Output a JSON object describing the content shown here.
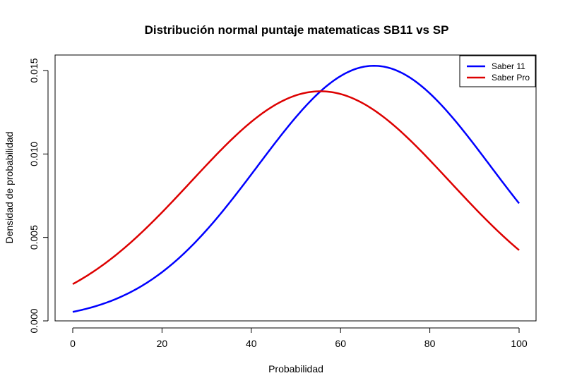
{
  "chart_data": {
    "type": "line",
    "title": "Distribución normal puntaje matematicas SB11 vs SP",
    "xlabel": "Probabilidad",
    "ylabel": "Densidad de probabilidad",
    "xlim": [
      0,
      100
    ],
    "ylim": [
      0,
      0.015
    ],
    "x_ticks": [
      0,
      20,
      40,
      60,
      80,
      100
    ],
    "x_tick_labels": [
      "0",
      "20",
      "40",
      "60",
      "80",
      "100"
    ],
    "y_ticks": [
      0,
      0.005,
      0.01,
      0.015
    ],
    "y_tick_labels": [
      "0.000",
      "0.005",
      "0.010",
      "0.015"
    ],
    "grid": false,
    "legend_position": "top-right",
    "series": [
      {
        "name": "Saber 11",
        "color": "#0000ff",
        "mean": 67.5,
        "sd": 26.1,
        "x_start": 0,
        "x_end": 100
      },
      {
        "name": "Saber Pro",
        "color": "#dd0000",
        "mean": 55.5,
        "sd": 29.0,
        "x_start": 0,
        "x_end": 100
      }
    ]
  }
}
